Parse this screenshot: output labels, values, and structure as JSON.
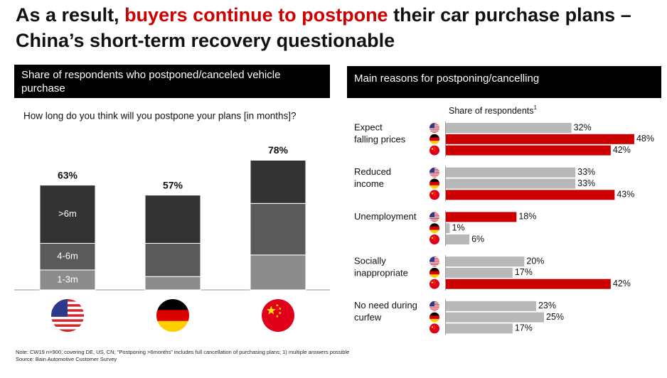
{
  "title_start": "As a result, ",
  "title_highlight": "buyers continue to postpone",
  "title_end": " their car purchase plans –",
  "title_line2": "China’s short-term recovery questionable",
  "footnote": "Note: CW19 n=900, covering DE, US, CN; \"Postponing >6months\" includes full cancellation of purchasing plans; 1) multiple answers possible",
  "source": "Source: Bain Automotive Customer Survey",
  "chart_data": [
    {
      "type": "stacked_bar",
      "title": "Share of respondents who postponed/canceled vehicle purchase",
      "subtitle": "How long do you think will you postpone your plans [in months]?",
      "categories": [
        null,
        null,
        null
      ],
      "series": [
        {
          "name": "1-3m",
          "color": "#8c8c8c",
          "values": [
            12,
            8,
            21
          ]
        },
        {
          "name": "4-6m",
          "color": "#5a5a5a",
          "values": [
            16,
            20,
            31
          ]
        },
        {
          "name": ">6m",
          "color": "#333333",
          "values": [
            35,
            29,
            26
          ]
        }
      ],
      "totals": [
        63,
        57,
        78
      ],
      "total_labels": [
        "63%",
        "57%",
        "78%"
      ],
      "ylim": [
        0,
        90
      ]
    },
    {
      "type": "grouped_hbar",
      "title": "Main reasons for postponing/cancelling",
      "x_label": "Share of respondents",
      "x_label_note": "1",
      "categories": [
        [
          "Expect",
          "falling prices"
        ],
        [
          "Reduced",
          "income"
        ],
        [
          "Unemployment"
        ],
        [
          "Socially",
          "inappropriate"
        ],
        [
          "No need during",
          "curfew"
        ]
      ],
      "series": [
        {
          "colors": [
            "#b8b8b8",
            "#b8b8b8",
            "#cc0000",
            "#b8b8b8",
            "#b8b8b8"
          ],
          "values": [
            32,
            33,
            18,
            20,
            23
          ],
          "value_labels": [
            "32%",
            "33%",
            "18%",
            "20%",
            "23%"
          ]
        },
        {
          "colors": [
            "#cc0000",
            "#b8b8b8",
            "#b8b8b8",
            "#b8b8b8",
            "#b8b8b8"
          ],
          "values": [
            48,
            33,
            1,
            17,
            25
          ],
          "value_labels": [
            "48%",
            "33%",
            "1%",
            "17%",
            "25%"
          ]
        },
        {
          "colors": [
            "#cc0000",
            "#cc0000",
            "#b8b8b8",
            "#cc0000",
            "#b8b8b8"
          ],
          "values": [
            42,
            43,
            6,
            42,
            17
          ],
          "value_labels": [
            "42%",
            "43%",
            "6%",
            "42%",
            "17%"
          ]
        }
      ],
      "xlim": [
        0,
        50
      ]
    }
  ]
}
